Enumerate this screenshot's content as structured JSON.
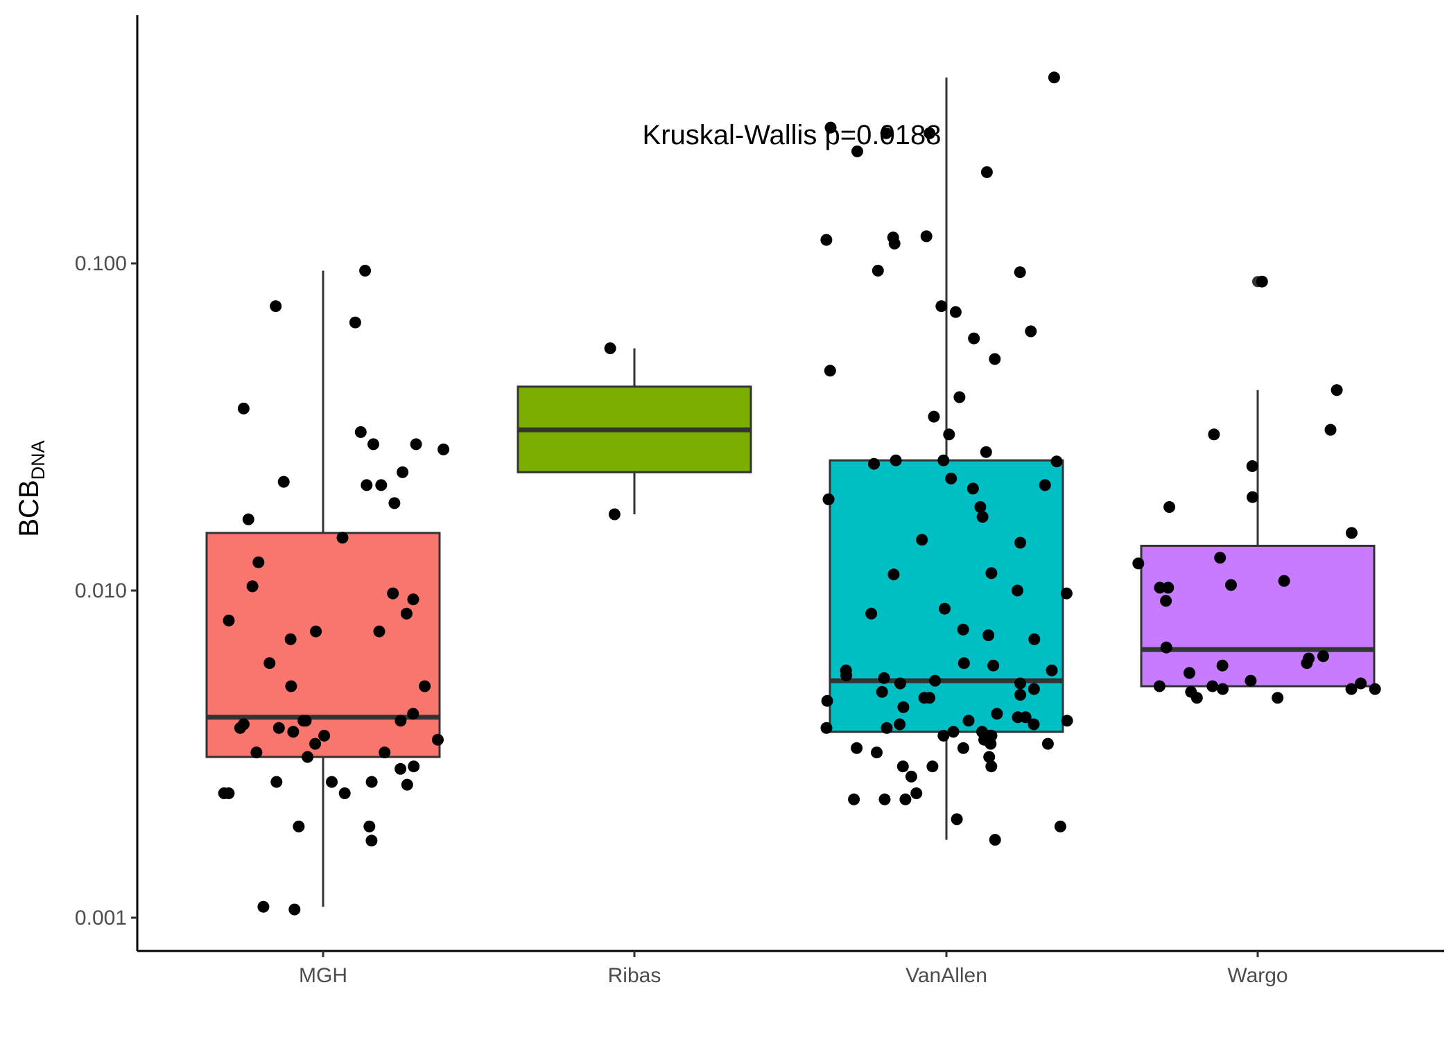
{
  "chart_data": {
    "type": "box",
    "ylabel": "BCB",
    "ylabel_subscript": "DNA",
    "y_scale": "log10",
    "ylim": [
      0.00075,
      0.55
    ],
    "yticks": [
      0.001,
      0.01,
      0.1
    ],
    "ytick_labels": [
      "0.001",
      "0.010",
      "0.100"
    ],
    "categories": [
      "MGH",
      "Ribas",
      "VanAllen",
      "Wargo"
    ],
    "annotation": "Kruskal-Wallis p=0.0188",
    "grid": false,
    "legend": "none",
    "boxes": [
      {
        "group": "MGH",
        "color": "#F8766D",
        "q1": 0.0031,
        "median": 0.0041,
        "q3": 0.015,
        "whisker_low": 0.00108,
        "whisker_high": 0.095
      },
      {
        "group": "Ribas",
        "color": "#7CAE00",
        "q1": 0.023,
        "median": 0.031,
        "q3": 0.042,
        "whisker_low": 0.0171,
        "whisker_high": 0.055
      },
      {
        "group": "VanAllen",
        "color": "#00BFC4",
        "q1": 0.0037,
        "median": 0.0053,
        "q3": 0.025,
        "whisker_low": 0.00173,
        "whisker_high": 0.37
      },
      {
        "group": "Wargo",
        "color": "#C77CFF",
        "q1": 0.0051,
        "median": 0.0066,
        "q3": 0.0137,
        "whisker_low": 0.0051,
        "whisker_high": 0.041,
        "outliers": [
          0.088
        ]
      }
    ],
    "points": [
      {
        "group": "MGH",
        "values": [
          0.0305,
          0.074,
          0.066,
          0.027,
          0.021,
          0.095,
          0.036,
          0.028,
          0.028,
          0.023,
          0.021,
          0.0215,
          0.0185,
          0.0165,
          0.0145,
          0.0122,
          0.0103,
          0.0098,
          0.0094,
          0.0085,
          0.0081,
          0.0075,
          0.0075,
          0.0071,
          0.006,
          0.0051,
          0.0051,
          0.0042,
          0.004,
          0.004,
          0.004,
          0.0039,
          0.0038,
          0.0038,
          0.0037,
          0.0036,
          0.0035,
          0.0034,
          0.0032,
          0.0032,
          0.0031,
          0.0029,
          0.00285,
          0.0026,
          0.0026,
          0.00255,
          0.0026,
          0.0024,
          0.0024,
          0.0024,
          0.0019,
          0.0019,
          0.00172,
          0.00108,
          0.00106
        ]
      },
      {
        "group": "Ribas",
        "values": [
          0.055,
          0.0171
        ]
      },
      {
        "group": "VanAllen",
        "values": [
          0.37,
          0.25,
          0.26,
          0.25,
          0.22,
          0.19,
          0.118,
          0.115,
          0.12,
          0.121,
          0.095,
          0.094,
          0.074,
          0.071,
          0.062,
          0.059,
          0.051,
          0.047,
          0.039,
          0.034,
          0.03,
          0.0265,
          0.025,
          0.025,
          0.0248,
          0.0244,
          0.022,
          0.021,
          0.0205,
          0.019,
          0.018,
          0.0168,
          0.0143,
          0.014,
          0.0113,
          0.0112,
          0.01,
          0.0098,
          0.0088,
          0.0085,
          0.0076,
          0.0073,
          0.0071,
          0.006,
          0.0059,
          0.0057,
          0.0057,
          0.0055,
          0.0054,
          0.0053,
          0.0052,
          0.0052,
          0.005,
          0.0049,
          0.0048,
          0.0047,
          0.0047,
          0.0046,
          0.0044,
          0.0042,
          0.0041,
          0.0041,
          0.004,
          0.004,
          0.0039,
          0.0039,
          0.0038,
          0.0038,
          0.0037,
          0.0037,
          0.0036,
          0.0036,
          0.0036,
          0.0035,
          0.0034,
          0.0034,
          0.0033,
          0.0033,
          0.0032,
          0.0031,
          0.0029,
          0.0029,
          0.0029,
          0.0027,
          0.0024,
          0.0023,
          0.0023,
          0.0023,
          0.002,
          0.0019,
          0.00173
        ]
      },
      {
        "group": "Wargo",
        "values": [
          0.088,
          0.041,
          0.031,
          0.03,
          0.024,
          0.0193,
          0.018,
          0.015,
          0.0126,
          0.0121,
          0.0107,
          0.0104,
          0.0102,
          0.0102,
          0.0093,
          0.0067,
          0.0063,
          0.0062,
          0.006,
          0.0059,
          0.0056,
          0.0053,
          0.0052,
          0.0051,
          0.0051,
          0.005,
          0.005,
          0.005,
          0.0049,
          0.0047,
          0.0047
        ]
      }
    ]
  }
}
